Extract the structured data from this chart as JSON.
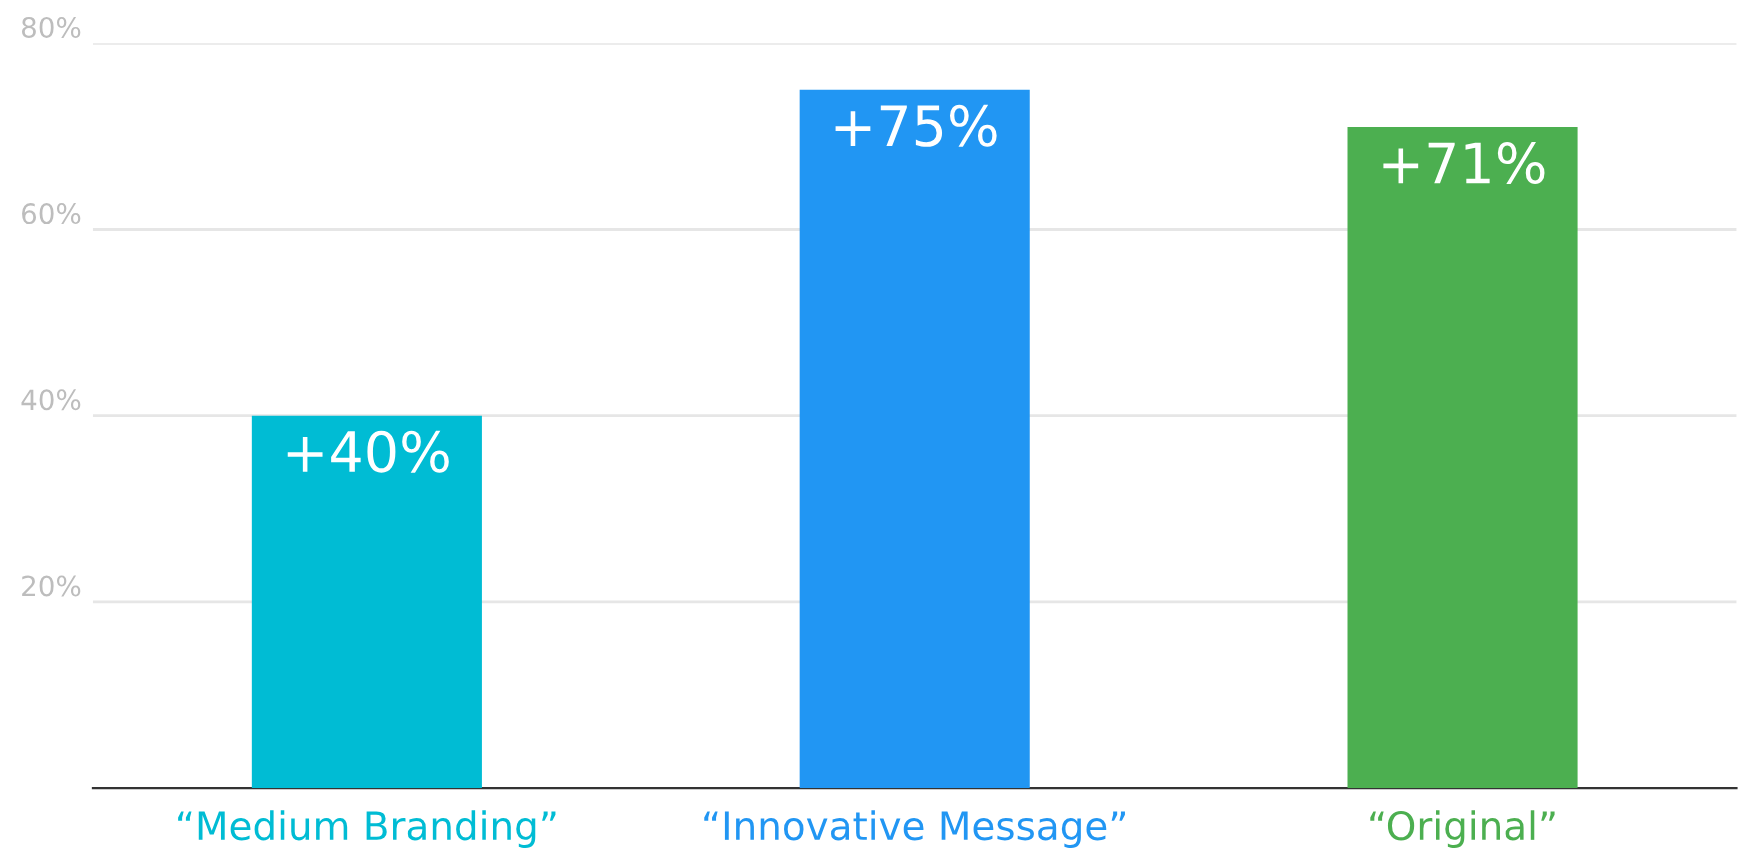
{
  "chart_data": {
    "type": "bar",
    "categories": [
      "“Medium Branding”",
      "“Innovative Message”",
      "“Original”"
    ],
    "values": [
      40,
      75,
      71
    ],
    "colors": [
      "#00bcd4",
      "#2196f3",
      "#4caf50"
    ],
    "value_labels": [
      "+40%",
      "+75%",
      "+71%"
    ],
    "ylim": [
      0,
      80
    ],
    "yticks": [
      {
        "value": 20,
        "label": "20%"
      },
      {
        "value": 40,
        "label": "40%"
      },
      {
        "value": 60,
        "label": "60%"
      },
      {
        "value": 80,
        "label": "80%"
      }
    ],
    "grid": "y"
  }
}
